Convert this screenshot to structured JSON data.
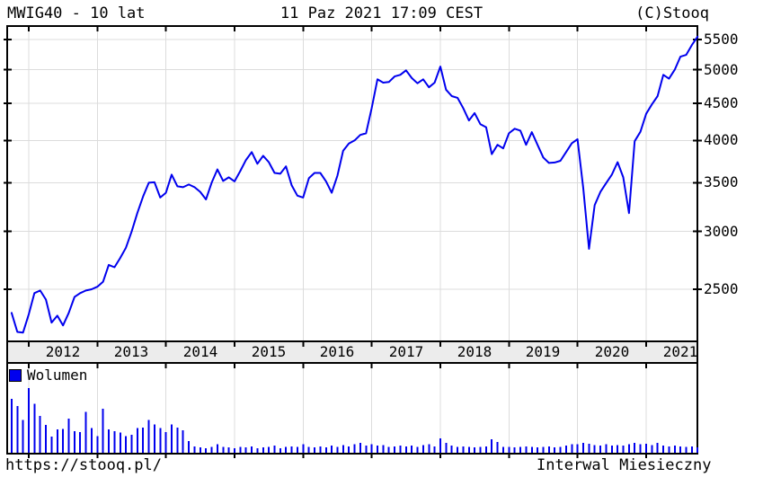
{
  "header": {
    "left": "MWIG40 - 10 lat",
    "center": "11 Paz 2021 17:09 CEST",
    "right": "(C)Stooq"
  },
  "footer": {
    "left": "https://stooq.pl/",
    "right": "Interwal Miesieczny"
  },
  "legend": {
    "volume_label": "Wolumen"
  },
  "colors": {
    "line": "#0000ee",
    "volume": "#0000ee",
    "grid": "#dcdcdc",
    "band_bg": "#ececec",
    "border": "#000000",
    "text": "#000000"
  },
  "chart_data": {
    "type": "line",
    "title": "MWIG40 - 10 lat",
    "timestamp": "11 Paz 2021 17:09 CEST",
    "source": "(C)Stooq",
    "interval_label": "Interwal Miesieczny",
    "x_start_month": "2011-10",
    "x_end_month": "2021-10",
    "x_tick_labels": [
      "2012",
      "2013",
      "2014",
      "2015",
      "2016",
      "2017",
      "2018",
      "2019",
      "2020",
      "2021"
    ],
    "y_ticks": [
      5500,
      5000,
      4500,
      4000,
      3500,
      3000,
      2500
    ],
    "y_scale": "log",
    "ylim": [
      2100,
      5650
    ],
    "grid": true,
    "legend_position": "volume-pane-top-left",
    "series": [
      {
        "name": "MWIG40",
        "values": [
          2320,
          2185,
          2180,
          2310,
          2470,
          2490,
          2420,
          2250,
          2300,
          2230,
          2320,
          2440,
          2470,
          2490,
          2500,
          2520,
          2560,
          2700,
          2680,
          2760,
          2850,
          3000,
          3180,
          3350,
          3500,
          3505,
          3340,
          3390,
          3590,
          3460,
          3450,
          3480,
          3450,
          3400,
          3320,
          3500,
          3650,
          3520,
          3560,
          3515,
          3630,
          3760,
          3855,
          3715,
          3810,
          3735,
          3610,
          3600,
          3685,
          3470,
          3360,
          3340,
          3550,
          3610,
          3610,
          3515,
          3390,
          3580,
          3870,
          3960,
          4000,
          4070,
          4090,
          4430,
          4850,
          4800,
          4810,
          4895,
          4920,
          4990,
          4870,
          4790,
          4850,
          4730,
          4800,
          5050,
          4695,
          4600,
          4575,
          4430,
          4260,
          4360,
          4210,
          4170,
          3830,
          3945,
          3900,
          4090,
          4150,
          4125,
          3945,
          4105,
          3945,
          3790,
          3725,
          3730,
          3750,
          3855,
          3965,
          4015,
          3440,
          2840,
          3260,
          3400,
          3495,
          3590,
          3735,
          3560,
          3180,
          3990,
          4110,
          4350,
          4480,
          4600,
          4920,
          4860,
          5000,
          5210,
          5240,
          5405,
          5550
        ]
      }
    ],
    "volume": {
      "name": "Wolumen",
      "unit": "relative-percent-of-max",
      "values": [
        83,
        72,
        51,
        100,
        76,
        57,
        43,
        25,
        36,
        37,
        53,
        33,
        32,
        63,
        38,
        26,
        68,
        36,
        33,
        31,
        26,
        28,
        38,
        39,
        51,
        44,
        38,
        32,
        44,
        39,
        35,
        18,
        10,
        8,
        7,
        9,
        13,
        9,
        8,
        7,
        9,
        8,
        10,
        7,
        8,
        9,
        11,
        7,
        9,
        10,
        9,
        13,
        9,
        8,
        10,
        8,
        11,
        9,
        12,
        10,
        13,
        15,
        11,
        13,
        11,
        12,
        9,
        10,
        11,
        10,
        11,
        9,
        12,
        13,
        10,
        22,
        15,
        11,
        9,
        10,
        9,
        8,
        9,
        10,
        21,
        17,
        9,
        9,
        8,
        9,
        10,
        9,
        8,
        9,
        10,
        8,
        9,
        11,
        13,
        13,
        15,
        14,
        12,
        11,
        13,
        11,
        12,
        11,
        13,
        15,
        13,
        14,
        12,
        15,
        11,
        10,
        11,
        10,
        9,
        10,
        8
      ]
    }
  }
}
